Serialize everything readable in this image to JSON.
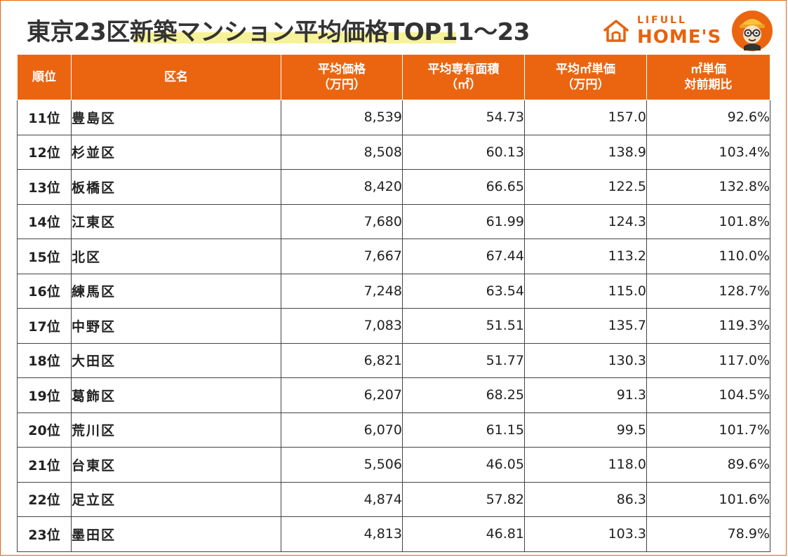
{
  "title": "東京23区新築マンション平均価格TOP11～23",
  "logo": {
    "top_text": "LIFULL",
    "main_text": "HOME'S"
  },
  "colors": {
    "header_bg": "#eb6510",
    "accent": "#e8620c",
    "highlight": "#f6f29a"
  },
  "table": {
    "headers": {
      "rank": "順位",
      "name": "区名",
      "price": {
        "line1": "平均価格",
        "line2": "（万円）"
      },
      "area": {
        "line1": "平均専有面積",
        "line2": "（㎡）"
      },
      "unit": {
        "line1": "平均㎡単価",
        "line2": "（万円）"
      },
      "yoy": {
        "line1": "㎡単価",
        "line2": "対前期比"
      }
    },
    "rows": [
      {
        "rank": "11位",
        "name": "豊島区",
        "price": "8,539",
        "area": "54.73",
        "unit": "157.0",
        "yoy": "92.6%"
      },
      {
        "rank": "12位",
        "name": "杉並区",
        "price": "8,508",
        "area": "60.13",
        "unit": "138.9",
        "yoy": "103.4%"
      },
      {
        "rank": "13位",
        "name": "板橋区",
        "price": "8,420",
        "area": "66.65",
        "unit": "122.5",
        "yoy": "132.8%"
      },
      {
        "rank": "14位",
        "name": "江東区",
        "price": "7,680",
        "area": "61.99",
        "unit": "124.3",
        "yoy": "101.8%"
      },
      {
        "rank": "15位",
        "name": "北区",
        "price": "7,667",
        "area": "67.44",
        "unit": "113.2",
        "yoy": "110.0%"
      },
      {
        "rank": "16位",
        "name": "練馬区",
        "price": "7,248",
        "area": "63.54",
        "unit": "115.0",
        "yoy": "128.7%"
      },
      {
        "rank": "17位",
        "name": "中野区",
        "price": "7,083",
        "area": "51.51",
        "unit": "135.7",
        "yoy": "119.3%"
      },
      {
        "rank": "18位",
        "name": "大田区",
        "price": "6,821",
        "area": "51.77",
        "unit": "130.3",
        "yoy": "117.0%"
      },
      {
        "rank": "19位",
        "name": "葛飾区",
        "price": "6,207",
        "area": "68.25",
        "unit": "91.3",
        "yoy": "104.5%"
      },
      {
        "rank": "20位",
        "name": "荒川区",
        "price": "6,070",
        "area": "61.15",
        "unit": "99.5",
        "yoy": "101.7%"
      },
      {
        "rank": "21位",
        "name": "台東区",
        "price": "5,506",
        "area": "46.05",
        "unit": "118.0",
        "yoy": "89.6%"
      },
      {
        "rank": "22位",
        "name": "足立区",
        "price": "4,874",
        "area": "57.82",
        "unit": "86.3",
        "yoy": "101.6%"
      },
      {
        "rank": "23位",
        "name": "墨田区",
        "price": "4,813",
        "area": "46.81",
        "unit": "103.3",
        "yoy": "78.9%"
      }
    ]
  }
}
